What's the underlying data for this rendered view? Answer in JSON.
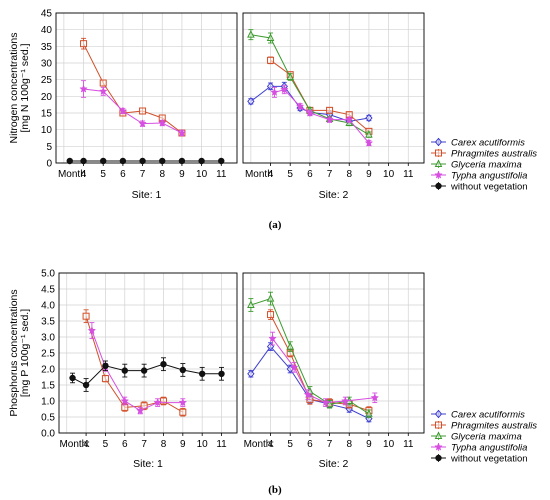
{
  "series_styles": [
    {
      "name": "Carex acutiformis",
      "color": "#3f3fd0",
      "marker": "diamond"
    },
    {
      "name": "Phragmites australis",
      "color": "#d2502a",
      "marker": "square"
    },
    {
      "name": "Glyceria maxima",
      "color": "#3c9a2e",
      "marker": "triangle"
    },
    {
      "name": "Typha angustifolia",
      "color": "#d64fe0",
      "marker": "star"
    },
    {
      "name": "without vegetation",
      "color": "#111111",
      "marker": "circle"
    }
  ],
  "chart_data": [
    {
      "id": "a",
      "caption": "(a)",
      "type": "line",
      "ylabel": "Nitrogen concentrations",
      "ylabel_unit": "[mg N 100g⁻¹ sed.]",
      "ylim": [
        0,
        45
      ],
      "yticks": [
        "0",
        "5",
        "10",
        "15",
        "20",
        "25",
        "30",
        "35",
        "40",
        "45"
      ],
      "xlim": [
        2.6,
        11.8
      ],
      "xticks": [
        "4",
        "5",
        "6",
        "7",
        "8",
        "9",
        "10",
        "11"
      ],
      "month_label": "Month",
      "grid": true,
      "legend": "right",
      "panels": [
        {
          "site_label": "Site: 1",
          "series": [
            {
              "name": "Phragmites australis",
              "x": [
                4,
                5,
                6,
                7,
                8,
                9
              ],
              "y": [
                35.8,
                24.0,
                15.0,
                15.6,
                13.5,
                9.0
              ],
              "err": [
                1.6,
                0.9,
                0.9,
                0.9,
                0.9,
                0.8
              ]
            },
            {
              "name": "Typha angustifolia",
              "x": [
                4,
                5,
                6,
                7,
                8,
                9
              ],
              "y": [
                22.2,
                21.5,
                15.6,
                11.8,
                12.0,
                9.0
              ],
              "err": [
                2.5,
                1.2,
                0.8,
                0.8,
                0.8,
                0.8
              ]
            },
            {
              "name": "without vegetation",
              "x": [
                3.3,
                4,
                5,
                6,
                7,
                8,
                9,
                10,
                11
              ],
              "y": [
                0.6,
                0.6,
                0.6,
                0.6,
                0.6,
                0.6,
                0.6,
                0.6,
                0.6
              ],
              "err": [
                0.5,
                0.5,
                0.5,
                0.5,
                0.5,
                0.5,
                0.5,
                0.5,
                0.5
              ]
            }
          ]
        },
        {
          "site_label": "Site: 2",
          "series": [
            {
              "name": "Carex acutiformis",
              "x": [
                3,
                4,
                4.7,
                5.5,
                6,
                7,
                8,
                9
              ],
              "y": [
                18.5,
                23.0,
                23.0,
                16.5,
                15.2,
                14.5,
                12.5,
                13.5
              ],
              "err": [
                0.8,
                1.0,
                1.2,
                0.8,
                0.8,
                0.8,
                0.8,
                0.8
              ]
            },
            {
              "name": "Phragmites australis",
              "x": [
                4,
                5,
                6,
                7,
                8,
                9
              ],
              "y": [
                30.8,
                26.5,
                15.8,
                15.8,
                14.5,
                9.5
              ],
              "err": [
                1.0,
                0.8,
                0.8,
                0.8,
                0.8,
                0.8
              ]
            },
            {
              "name": "Glyceria maxima",
              "x": [
                3,
                4,
                5,
                6,
                7,
                8,
                9
              ],
              "y": [
                38.5,
                37.5,
                25.8,
                15.8,
                13.2,
                12.0,
                8.5
              ],
              "err": [
                1.5,
                1.5,
                1.0,
                0.8,
                0.8,
                0.8,
                0.8
              ]
            },
            {
              "name": "Typha angustifolia",
              "x": [
                4.2,
                4.7,
                5.5,
                6,
                7,
                8,
                9
              ],
              "y": [
                21.2,
                22.0,
                17.0,
                15.0,
                13.0,
                13.0,
                6.0
              ],
              "err": [
                1.5,
                1.2,
                0.8,
                0.8,
                0.8,
                0.8,
                0.8
              ]
            }
          ]
        }
      ]
    },
    {
      "id": "b",
      "caption": "(b)",
      "type": "line",
      "ylabel": "Phosphorus concentrations",
      "ylabel_unit": "[mg P 100g⁻¹ sed.]",
      "ylim": [
        0,
        5
      ],
      "yticks": [
        "0.0",
        "0.5",
        "1.0",
        "1.5",
        "2.0",
        "2.5",
        "3.0",
        "3.5",
        "4.0",
        "4.5",
        "5.0"
      ],
      "xlim": [
        2.6,
        11.8
      ],
      "xticks": [
        "4",
        "5",
        "6",
        "7",
        "8",
        "9",
        "10",
        "11"
      ],
      "month_label": "Month:",
      "grid": true,
      "legend": "right",
      "panels": [
        {
          "site_label": "Site: 1",
          "series": [
            {
              "name": "Phragmites australis",
              "x": [
                4,
                5,
                6,
                7,
                8,
                9
              ],
              "y": [
                3.65,
                1.7,
                0.8,
                0.85,
                1.0,
                0.65
              ],
              "err": [
                0.2,
                0.1,
                0.12,
                0.12,
                0.12,
                0.12
              ]
            },
            {
              "name": "Typha angustifolia",
              "x": [
                4.3,
                5,
                6,
                6.8,
                7.7,
                9
              ],
              "y": [
                3.2,
                2.05,
                1.0,
                0.7,
                0.95,
                0.95
              ],
              "err": [
                0.25,
                0.12,
                0.12,
                0.1,
                0.12,
                0.12
              ]
            },
            {
              "name": "without vegetation",
              "x": [
                3.3,
                4,
                5,
                6,
                7,
                8,
                9,
                10,
                11
              ],
              "y": [
                1.72,
                1.5,
                2.1,
                1.95,
                1.95,
                2.15,
                1.97,
                1.85,
                1.85
              ],
              "err": [
                0.15,
                0.2,
                0.15,
                0.2,
                0.2,
                0.2,
                0.2,
                0.2,
                0.2
              ]
            }
          ]
        },
        {
          "site_label": "Site: 2",
          "series": [
            {
              "name": "Carex acutiformis",
              "x": [
                3,
                4,
                5,
                6,
                7,
                8,
                9
              ],
              "y": [
                1.85,
                2.7,
                2.0,
                1.05,
                0.9,
                0.75,
                0.45
              ],
              "err": [
                0.1,
                0.12,
                0.12,
                0.12,
                0.1,
                0.1,
                0.1
              ]
            },
            {
              "name": "Phragmites australis",
              "x": [
                4,
                5,
                6,
                7,
                8,
                9
              ],
              "y": [
                3.7,
                2.5,
                1.05,
                0.95,
                0.9,
                0.7
              ],
              "err": [
                0.15,
                0.12,
                0.15,
                0.12,
                0.12,
                0.12
              ]
            },
            {
              "name": "Glyceria maxima",
              "x": [
                3,
                4,
                5,
                6,
                7,
                8,
                9
              ],
              "y": [
                4.0,
                4.2,
                2.7,
                1.3,
                0.9,
                1.0,
                0.6
              ],
              "err": [
                0.2,
                0.2,
                0.15,
                0.15,
                0.12,
                0.12,
                0.12
              ]
            },
            {
              "name": "Typha angustifolia",
              "x": [
                4.1,
                5.2,
                5.9,
                6.8,
                7.8,
                9.3
              ],
              "y": [
                2.95,
                2.05,
                1.2,
                0.95,
                1.0,
                1.1
              ],
              "err": [
                0.2,
                0.15,
                0.15,
                0.12,
                0.12,
                0.15
              ]
            }
          ]
        }
      ]
    }
  ]
}
